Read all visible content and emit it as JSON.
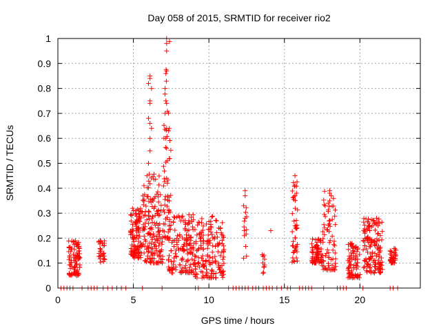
{
  "chart_data": {
    "type": "scatter",
    "title": "Day 058 of 2015, SRMTID for receiver rio2",
    "xlabel": "GPS time / hours",
    "ylabel": "SRMTID / TECUs",
    "xlim": [
      0,
      24
    ],
    "ylim": [
      0,
      1
    ],
    "xticks": [
      0,
      5,
      10,
      15,
      20
    ],
    "yticks": [
      0,
      0.1,
      0.2,
      0.3,
      0.4,
      0.5,
      0.6,
      0.7,
      0.8,
      0.9,
      1
    ],
    "grid": true,
    "marker": "+",
    "color": "#ff0000",
    "clusters": [
      {
        "x": [
          0.7,
          1.5
        ],
        "y": [
          0.05,
          0.19
        ],
        "n": 90
      },
      {
        "x": [
          2.7,
          3.1
        ],
        "y": [
          0.1,
          0.19
        ],
        "n": 30
      },
      {
        "x": [
          4.8,
          5.6
        ],
        "y": [
          0.12,
          0.33
        ],
        "n": 110
      },
      {
        "x": [
          5.6,
          7.0
        ],
        "y": [
          0.1,
          0.46
        ],
        "n": 170
      },
      {
        "x": [
          7.0,
          7.5
        ],
        "y": [
          0.2,
          1.0
        ],
        "n": 50
      },
      {
        "x": [
          7.3,
          9.0
        ],
        "y": [
          0.06,
          0.3
        ],
        "n": 150
      },
      {
        "x": [
          9.0,
          11.0
        ],
        "y": [
          0.04,
          0.29
        ],
        "n": 170
      },
      {
        "x": [
          12.3,
          12.5
        ],
        "y": [
          0.12,
          0.39
        ],
        "n": 10
      },
      {
        "x": [
          13.5,
          13.7
        ],
        "y": [
          0.05,
          0.14
        ],
        "n": 10
      },
      {
        "x": [
          15.5,
          15.9
        ],
        "y": [
          0.1,
          0.45
        ],
        "n": 40
      },
      {
        "x": [
          16.8,
          17.5
        ],
        "y": [
          0.1,
          0.2
        ],
        "n": 70
      },
      {
        "x": [
          17.5,
          18.4
        ],
        "y": [
          0.07,
          0.39
        ],
        "n": 70
      },
      {
        "x": [
          19.2,
          20.0
        ],
        "y": [
          0.04,
          0.18
        ],
        "n": 80
      },
      {
        "x": [
          20.2,
          21.5
        ],
        "y": [
          0.06,
          0.28
        ],
        "n": 140
      },
      {
        "x": [
          22.0,
          22.4
        ],
        "y": [
          0.1,
          0.17
        ],
        "n": 40
      }
    ],
    "points": [
      [
        7.2,
        1.0
      ],
      [
        7.2,
        0.98
      ],
      [
        7.2,
        0.95
      ],
      [
        7.2,
        0.87
      ],
      [
        7.15,
        0.86
      ],
      [
        7.1,
        0.8
      ],
      [
        7.15,
        0.75
      ],
      [
        7.2,
        0.74
      ],
      [
        7.1,
        0.7
      ],
      [
        7.2,
        0.64
      ],
      [
        7.15,
        0.6
      ],
      [
        7.2,
        0.56
      ],
      [
        7.25,
        0.51
      ],
      [
        7.2,
        0.44
      ],
      [
        7.25,
        0.42
      ],
      [
        6.1,
        0.85
      ],
      [
        6.1,
        0.84
      ],
      [
        6.0,
        0.82
      ],
      [
        6.2,
        0.8
      ],
      [
        6.1,
        0.75
      ],
      [
        6.1,
        0.74
      ],
      [
        6.0,
        0.68
      ],
      [
        6.1,
        0.66
      ],
      [
        6.2,
        0.64
      ],
      [
        6.1,
        0.6
      ],
      [
        6.1,
        0.55
      ],
      [
        6.0,
        0.5
      ],
      [
        5.9,
        0.45
      ],
      [
        12.4,
        0.39
      ],
      [
        12.4,
        0.37
      ],
      [
        12.3,
        0.33
      ],
      [
        12.4,
        0.28
      ],
      [
        12.35,
        0.21
      ],
      [
        12.3,
        0.12
      ],
      [
        15.7,
        0.45
      ],
      [
        15.7,
        0.41
      ],
      [
        15.8,
        0.38
      ],
      [
        15.7,
        0.37
      ],
      [
        15.7,
        0.25
      ],
      [
        15.8,
        0.24
      ],
      [
        18.0,
        0.39
      ],
      [
        18.0,
        0.38
      ],
      [
        18.1,
        0.37
      ],
      [
        18.0,
        0.35
      ],
      [
        17.9,
        0.34
      ],
      [
        14.1,
        0.23
      ],
      [
        21.1,
        0.28
      ],
      [
        21.0,
        0.26
      ],
      [
        21.3,
        0.26
      ],
      [
        21.2,
        0.25
      ]
    ],
    "zeros": [
      0.2,
      0.4,
      0.6,
      0.8,
      1.0,
      1.6,
      2.0,
      2.2,
      2.4,
      2.6,
      3.0,
      3.3,
      3.6,
      3.9,
      4.2,
      4.5,
      5.6,
      6.9,
      9.1,
      9.3,
      11.3,
      11.6,
      11.8,
      12.0,
      12.2,
      12.4,
      12.6,
      12.9,
      13.1,
      13.3,
      13.6,
      13.8,
      14.0,
      14.2,
      14.5,
      14.8,
      15.2,
      15.4,
      16.0,
      16.2,
      16.4,
      16.6,
      16.8,
      17.6,
      18.5,
      18.7,
      18.9,
      19.1,
      20.2,
      22.0,
      22.2,
      22.5
    ]
  }
}
